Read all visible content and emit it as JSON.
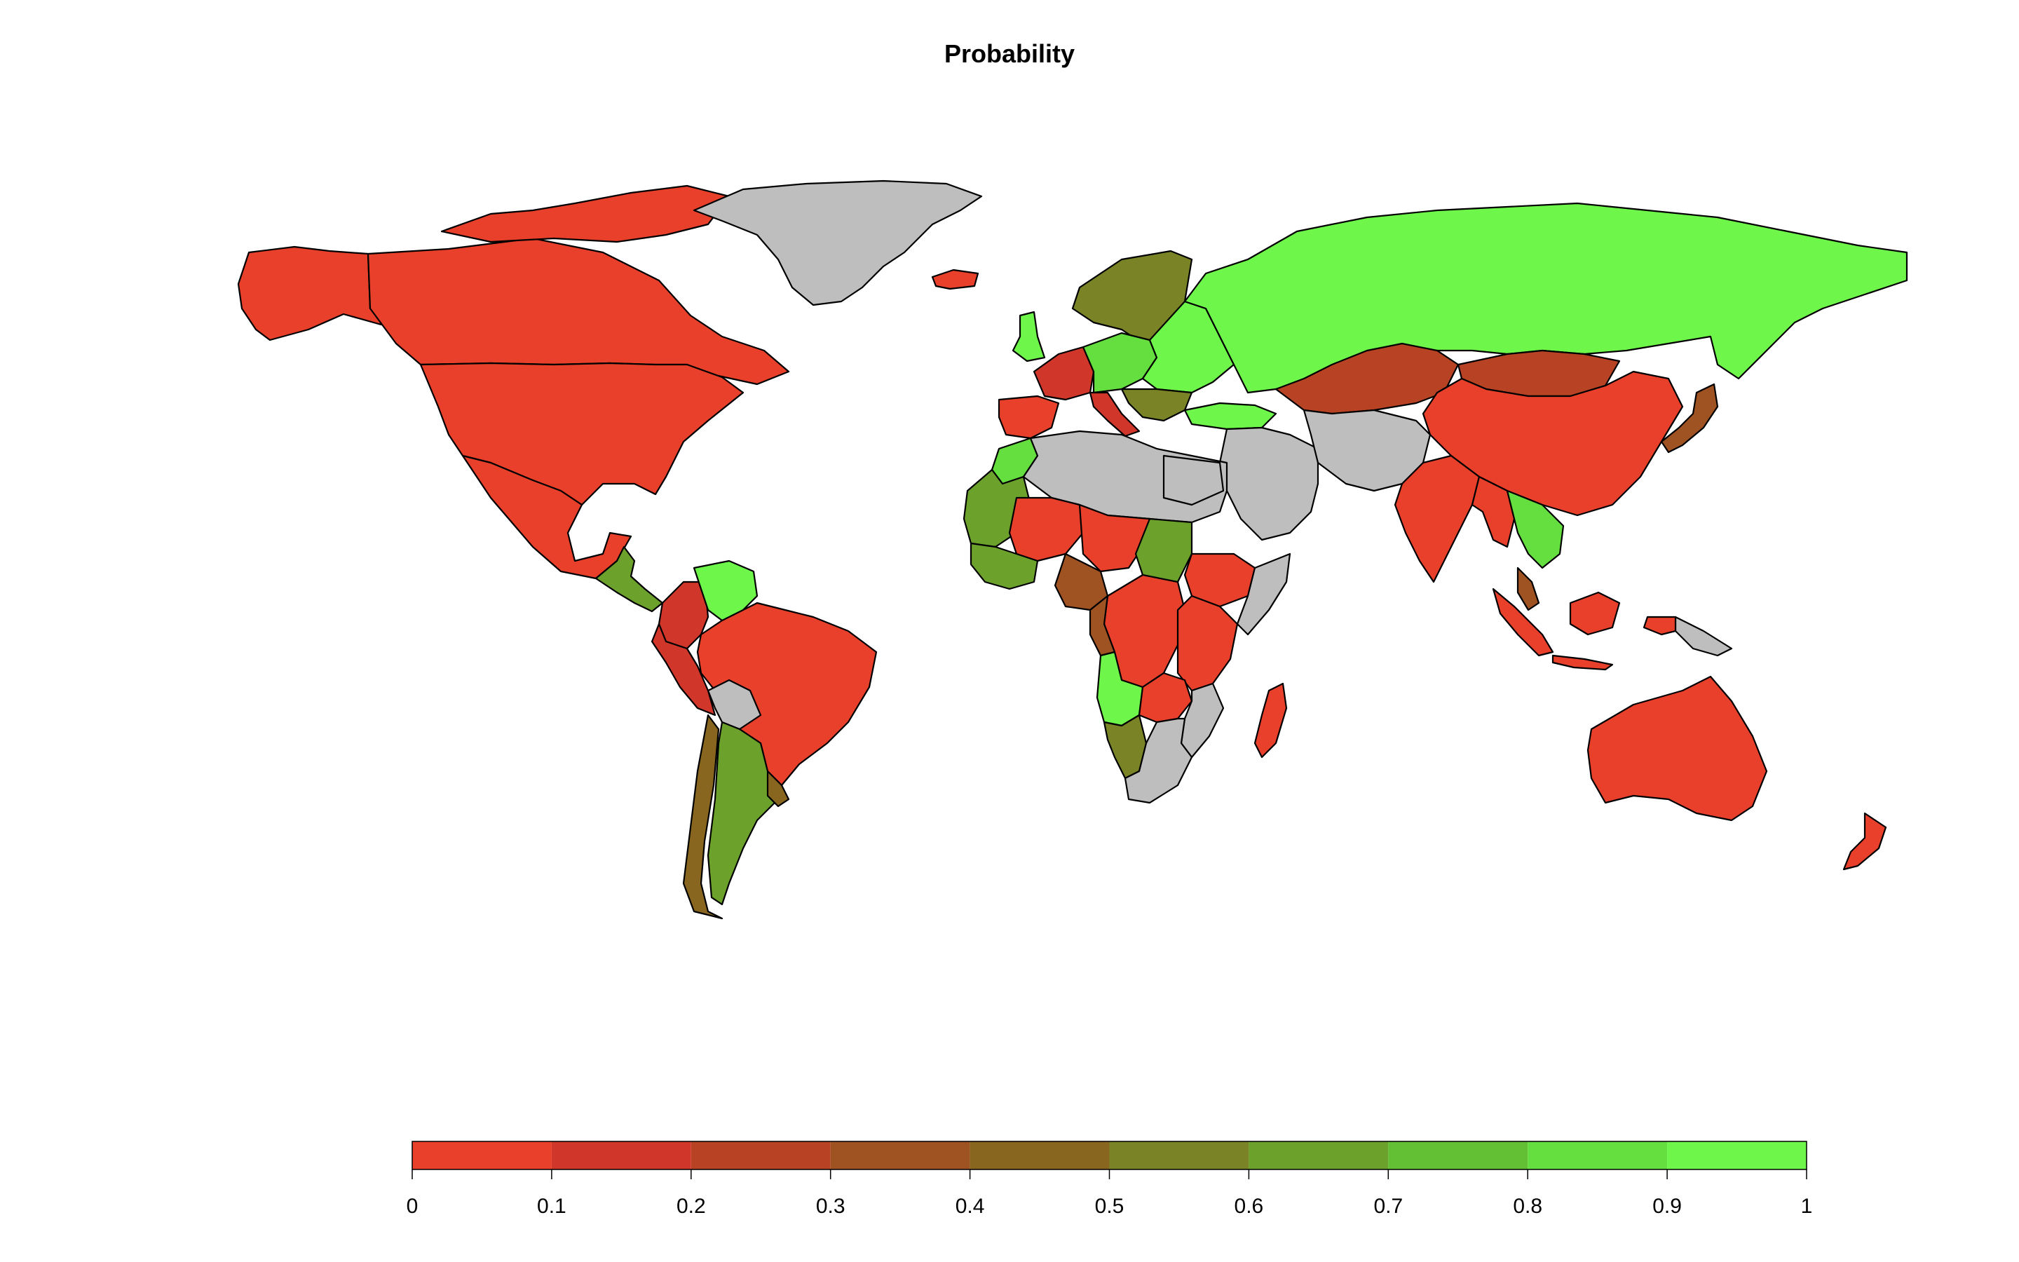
{
  "map": {
    "title": "Probability",
    "no_data_color": "#bebebe",
    "legend": {
      "breaks": [
        "0",
        "0.1",
        "0.2",
        "0.3",
        "0.4",
        "0.5",
        "0.6",
        "0.7",
        "0.8",
        "0.9",
        "1"
      ],
      "bins": [
        {
          "range": [
            0.0,
            0.1
          ],
          "color": "#e8402a"
        },
        {
          "range": [
            0.1,
            0.2
          ],
          "color": "#d0372a"
        },
        {
          "range": [
            0.2,
            0.3
          ],
          "color": "#b84324"
        },
        {
          "range": [
            0.3,
            0.4
          ],
          "color": "#9f5222"
        },
        {
          "range": [
            0.4,
            0.5
          ],
          "color": "#88661f"
        },
        {
          "range": [
            0.5,
            0.6
          ],
          "color": "#7a8426"
        },
        {
          "range": [
            0.6,
            0.7
          ],
          "color": "#6ca22c"
        },
        {
          "range": [
            0.7,
            0.8
          ],
          "color": "#63c034"
        },
        {
          "range": [
            0.8,
            0.9
          ],
          "color": "#65df3f"
        },
        {
          "range": [
            0.9,
            1.0
          ],
          "color": "#6ef64a"
        }
      ]
    },
    "regions": [
      {
        "id": "alaska",
        "value": 0.05
      },
      {
        "id": "canada",
        "value": 0.05
      },
      {
        "id": "usa",
        "value": 0.05
      },
      {
        "id": "mexico",
        "value": 0.05
      },
      {
        "id": "greenland",
        "value": null
      },
      {
        "id": "central-america",
        "value": 0.6
      },
      {
        "id": "colombia",
        "value": 0.15
      },
      {
        "id": "venezuela",
        "value": 0.95
      },
      {
        "id": "brazil",
        "value": 0.05
      },
      {
        "id": "peru",
        "value": 0.15
      },
      {
        "id": "bolivia",
        "value": null
      },
      {
        "id": "chile",
        "value": 0.45
      },
      {
        "id": "argentina",
        "value": 0.65
      },
      {
        "id": "uruguay",
        "value": 0.45
      },
      {
        "id": "iceland",
        "value": 0.05
      },
      {
        "id": "uk",
        "value": 0.95
      },
      {
        "id": "scandinavia",
        "value": 0.55
      },
      {
        "id": "western-europe",
        "value": 0.15
      },
      {
        "id": "iberia",
        "value": 0.05
      },
      {
        "id": "central-europe",
        "value": 0.85
      },
      {
        "id": "eastern-europe",
        "value": 0.95
      },
      {
        "id": "balkans",
        "value": 0.55
      },
      {
        "id": "turkey",
        "value": 0.95
      },
      {
        "id": "russia",
        "value": 0.95
      },
      {
        "id": "kazakhstan",
        "value": 0.25
      },
      {
        "id": "mongolia",
        "value": 0.25
      },
      {
        "id": "china",
        "value": 0.05
      },
      {
        "id": "japan",
        "value": 0.35
      },
      {
        "id": "middle-east",
        "value": null
      },
      {
        "id": "iran",
        "value": null
      },
      {
        "id": "india",
        "value": 0.05
      },
      {
        "id": "myanmar",
        "value": 0.05
      },
      {
        "id": "southeast-asia",
        "value": 0.85
      },
      {
        "id": "malaysia",
        "value": 0.35
      },
      {
        "id": "indonesia",
        "value": 0.05
      },
      {
        "id": "papua-new-guinea",
        "value": null
      },
      {
        "id": "australia",
        "value": 0.05
      },
      {
        "id": "new-zealand",
        "value": 0.05
      },
      {
        "id": "morocco",
        "value": 0.85
      },
      {
        "id": "sahara",
        "value": null
      },
      {
        "id": "mauritania",
        "value": 0.65
      },
      {
        "id": "mali",
        "value": 0.05
      },
      {
        "id": "chad",
        "value": 0.05
      },
      {
        "id": "sudan",
        "value": 0.65
      },
      {
        "id": "egypt",
        "value": null
      },
      {
        "id": "ethiopia",
        "value": 0.05
      },
      {
        "id": "somalia",
        "value": null
      },
      {
        "id": "nigeria",
        "value": 0.35
      },
      {
        "id": "congo",
        "value": 0.05
      },
      {
        "id": "east-africa",
        "value": 0.05
      },
      {
        "id": "angola",
        "value": 0.95
      },
      {
        "id": "namibia",
        "value": 0.55
      },
      {
        "id": "zambia",
        "value": 0.05
      },
      {
        "id": "south-africa",
        "value": null
      },
      {
        "id": "mozambique",
        "value": null
      },
      {
        "id": "madagascar",
        "value": 0.05
      }
    ]
  }
}
